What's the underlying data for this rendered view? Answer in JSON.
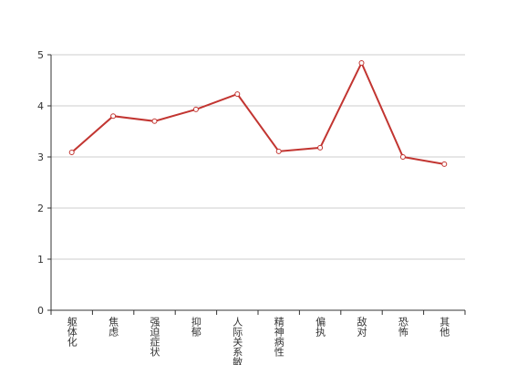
{
  "chart_data": {
    "type": "line",
    "categories": [
      "躯体化",
      "焦虑",
      "强迫症状",
      "抑郁",
      "人际关系敏感",
      "精神病性",
      "偏执",
      "敌对",
      "恐怖",
      "其他"
    ],
    "series": [
      {
        "color": "#c23531",
        "values": [
          3.09,
          3.8,
          3.7,
          3.93,
          4.23,
          3.11,
          3.18,
          4.84,
          3.0,
          2.86
        ]
      }
    ],
    "ylim": [
      0,
      5
    ],
    "yticks": [
      0,
      1,
      2,
      3,
      4,
      5
    ],
    "grid": true
  }
}
